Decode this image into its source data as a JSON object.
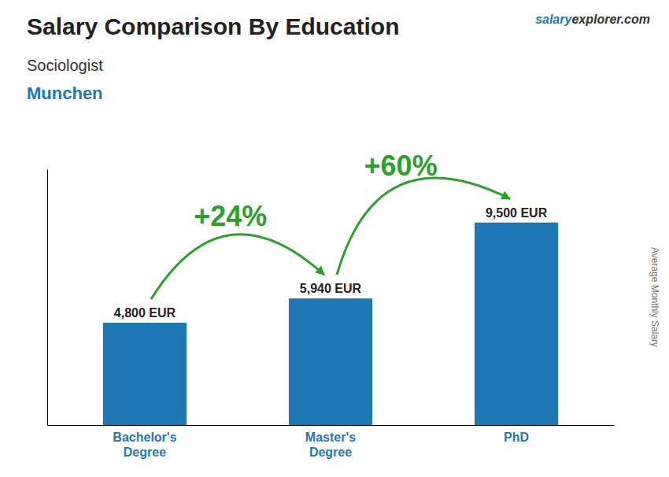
{
  "chart_data": {
    "type": "bar",
    "title": "Salary Comparison By Education",
    "subtitle": [
      "Sociologist",
      "Munchen"
    ],
    "source": [
      "salary",
      "explorer.com"
    ],
    "ylabel": "Average Monthly Salary",
    "categories": [
      "Bachelor's\nDegree",
      "Master's\nDegree",
      "PhD"
    ],
    "values": [
      4800,
      5940,
      9500
    ],
    "value_labels": [
      "4,800 EUR",
      "5,940 EUR",
      "9,500 EUR"
    ],
    "data_labels": true,
    "annotations": [
      "+24%",
      "+60%"
    ],
    "ylim": [
      0,
      12000
    ],
    "tick_labels": "x",
    "grid": false
  }
}
